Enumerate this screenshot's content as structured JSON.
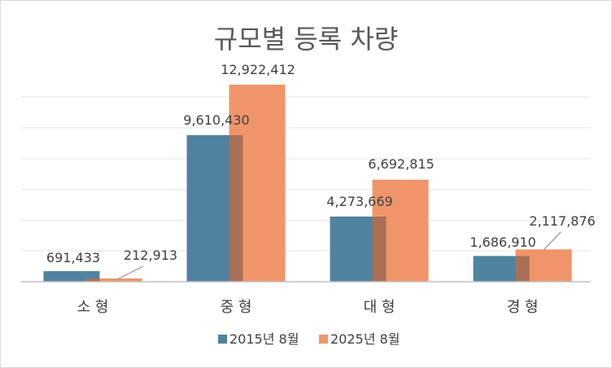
{
  "chart_data": {
    "type": "bar",
    "title": "규모별 등록 차량",
    "categories": [
      "소  형",
      "중  형",
      "대  형",
      "경  형"
    ],
    "series": [
      {
        "name": "2015년 8월",
        "color": "#4f83a0",
        "values": [
          691433,
          9610430,
          4273669,
          1686910
        ],
        "labels": [
          "691,433",
          "9,610,430",
          "4,273,669",
          "1,686,910"
        ]
      },
      {
        "name": "2025년 8월",
        "color": "#f0956a",
        "values": [
          212913,
          12922412,
          6692815,
          2117876
        ],
        "labels": [
          "212,913",
          "12,922,412",
          "6,692,815",
          "2,117,876"
        ]
      }
    ],
    "ylim": [
      0,
      12922412
    ],
    "grid": true,
    "legend": "bottom",
    "xlabel": "",
    "ylabel": ""
  },
  "colors": {
    "grid": "#e6e6e6",
    "axis": "#bfbfbf",
    "overlap": "#a97057",
    "leader": "#a6a6a6"
  }
}
